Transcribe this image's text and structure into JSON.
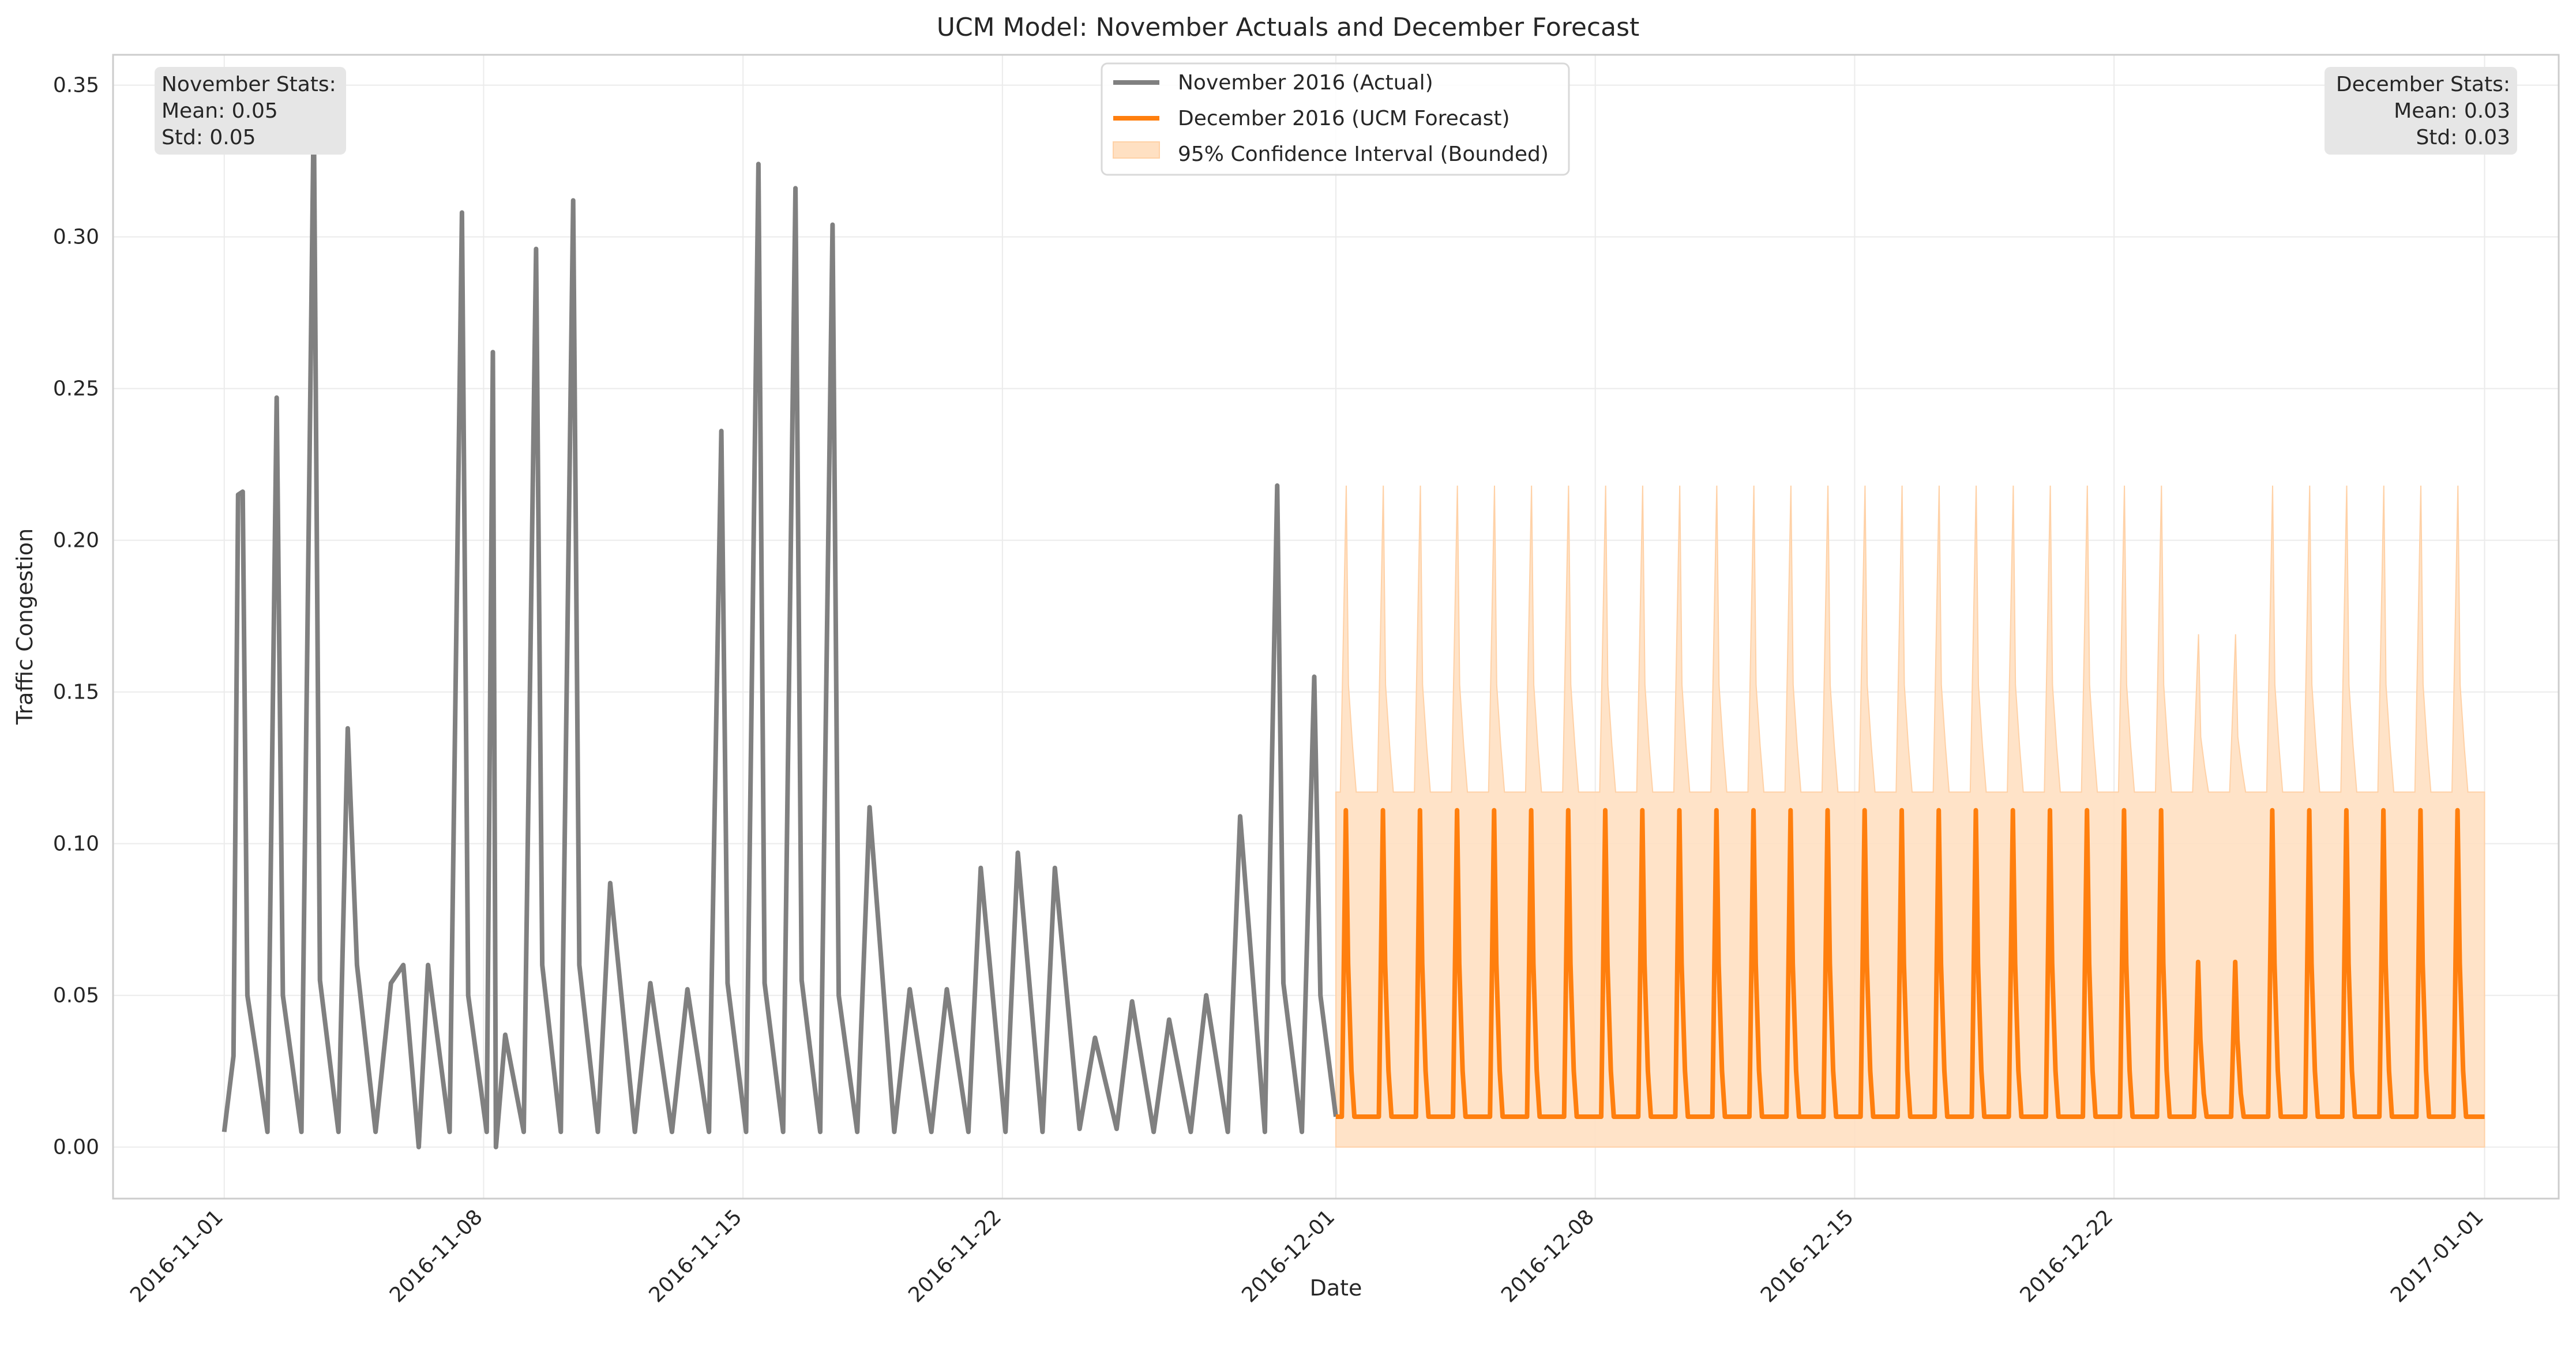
{
  "chart_data": {
    "type": "line",
    "title": "UCM Model: November Actuals and December Forecast",
    "xlabel": "Date",
    "ylabel": "Traffic Congestion",
    "xlim": [
      "2016-10-29",
      "2017-01-03"
    ],
    "ylim": [
      -0.017,
      0.36
    ],
    "x_ticks": [
      "2016-11-01",
      "2016-11-08",
      "2016-11-15",
      "2016-11-22",
      "2016-12-01",
      "2016-12-08",
      "2016-12-15",
      "2016-12-22",
      "2017-01-01"
    ],
    "y_ticks": [
      "0.00",
      "0.05",
      "0.10",
      "0.15",
      "0.20",
      "0.25",
      "0.30",
      "0.35"
    ],
    "grid": true,
    "legend_position": "top-center",
    "series": [
      {
        "name": "November 2016 (Actual)",
        "color": "#808080",
        "description": "hourly actual values, key points (date, value)",
        "points": [
          [
            "2016-11-01",
            0.005
          ],
          [
            "2016-11-01T06",
            0.03
          ],
          [
            "2016-11-01T09",
            0.215
          ],
          [
            "2016-11-01T12",
            0.216
          ],
          [
            "2016-11-01T15",
            0.05
          ],
          [
            "2016-11-01T21",
            0.03
          ],
          [
            "2016-11-02T04",
            0.005
          ],
          [
            "2016-11-02T10",
            0.247
          ],
          [
            "2016-11-02T14",
            0.05
          ],
          [
            "2016-11-03T02",
            0.005
          ],
          [
            "2016-11-03T10",
            0.343
          ],
          [
            "2016-11-03T14",
            0.055
          ],
          [
            "2016-11-04T02",
            0.005
          ],
          [
            "2016-11-04T08",
            0.138
          ],
          [
            "2016-11-04T14",
            0.06
          ],
          [
            "2016-11-05T02",
            0.005
          ],
          [
            "2016-11-05T12",
            0.054
          ],
          [
            "2016-11-05T20",
            0.06
          ],
          [
            "2016-11-06T06",
            0.0
          ],
          [
            "2016-11-06T12",
            0.06
          ],
          [
            "2016-11-07T02",
            0.005
          ],
          [
            "2016-11-07T10",
            0.308
          ],
          [
            "2016-11-07T14",
            0.05
          ],
          [
            "2016-11-08T02",
            0.005
          ],
          [
            "2016-11-08T06",
            0.262
          ],
          [
            "2016-11-08T08",
            0.0
          ],
          [
            "2016-11-08T14",
            0.037
          ],
          [
            "2016-11-09T02",
            0.005
          ],
          [
            "2016-11-09T10",
            0.296
          ],
          [
            "2016-11-09T14",
            0.06
          ],
          [
            "2016-11-10T02",
            0.005
          ],
          [
            "2016-11-10T10",
            0.312
          ],
          [
            "2016-11-10T14",
            0.06
          ],
          [
            "2016-11-11T02",
            0.005
          ],
          [
            "2016-11-11T10",
            0.087
          ],
          [
            "2016-11-12T02",
            0.005
          ],
          [
            "2016-11-12T12",
            0.054
          ],
          [
            "2016-11-13T02",
            0.005
          ],
          [
            "2016-11-13T12",
            0.052
          ],
          [
            "2016-11-14T02",
            0.005
          ],
          [
            "2016-11-14T10",
            0.236
          ],
          [
            "2016-11-14T14",
            0.054
          ],
          [
            "2016-11-15T02",
            0.005
          ],
          [
            "2016-11-15T10",
            0.324
          ],
          [
            "2016-11-15T14",
            0.054
          ],
          [
            "2016-11-16T02",
            0.005
          ],
          [
            "2016-11-16T10",
            0.316
          ],
          [
            "2016-11-16T14",
            0.055
          ],
          [
            "2016-11-17T02",
            0.005
          ],
          [
            "2016-11-17T10",
            0.304
          ],
          [
            "2016-11-17T14",
            0.05
          ],
          [
            "2016-11-18T02",
            0.005
          ],
          [
            "2016-11-18T10",
            0.112
          ],
          [
            "2016-11-19T02",
            0.005
          ],
          [
            "2016-11-19T12",
            0.052
          ],
          [
            "2016-11-20T02",
            0.005
          ],
          [
            "2016-11-20T12",
            0.052
          ],
          [
            "2016-11-21T02",
            0.005
          ],
          [
            "2016-11-21T10",
            0.092
          ],
          [
            "2016-11-22T02",
            0.005
          ],
          [
            "2016-11-22T10",
            0.097
          ],
          [
            "2016-11-23T02",
            0.005
          ],
          [
            "2016-11-23T10",
            0.092
          ],
          [
            "2016-11-24T02",
            0.006
          ],
          [
            "2016-11-24T12",
            0.036
          ],
          [
            "2016-11-25T02",
            0.006
          ],
          [
            "2016-11-25T12",
            0.048
          ],
          [
            "2016-11-26T02",
            0.005
          ],
          [
            "2016-11-26T12",
            0.042
          ],
          [
            "2016-11-27T02",
            0.005
          ],
          [
            "2016-11-27T12",
            0.05
          ],
          [
            "2016-11-28T02",
            0.005
          ],
          [
            "2016-11-28T10",
            0.109
          ],
          [
            "2016-11-29T02",
            0.005
          ],
          [
            "2016-11-29T10",
            0.218
          ],
          [
            "2016-11-29T14",
            0.054
          ],
          [
            "2016-11-30T02",
            0.005
          ],
          [
            "2016-11-30T10",
            0.155
          ],
          [
            "2016-11-30T14",
            0.05
          ],
          [
            "2016-12-01T00",
            0.01
          ]
        ]
      },
      {
        "name": "December 2016 (UCM Forecast)",
        "color": "#ff7f0e",
        "description": "daily cycle from 2016-12-01 to 2017-01-01; weekday peak 0.111, baseline 0.01; lower peaks on 2016-12-24 and 2016-12-25",
        "x_start": "2016-12-01",
        "x_end": "2017-01-01",
        "baseline": 0.01,
        "daily_peak": [
          0.111,
          0.111,
          0.111,
          0.111,
          0.111,
          0.111,
          0.111,
          0.111,
          0.111,
          0.111,
          0.111,
          0.111,
          0.111,
          0.111,
          0.111,
          0.111,
          0.111,
          0.111,
          0.111,
          0.111,
          0.111,
          0.111,
          0.111,
          0.061,
          0.061,
          0.111,
          0.111,
          0.111,
          0.111,
          0.111,
          0.111
        ]
      },
      {
        "name": "95% Confidence Interval (Bounded)",
        "color": "#ffe0c2",
        "lower": 0.0,
        "upper_baseline": 0.117,
        "upper_daily_peak": [
          0.218,
          0.218,
          0.218,
          0.218,
          0.218,
          0.218,
          0.218,
          0.218,
          0.218,
          0.218,
          0.218,
          0.218,
          0.218,
          0.218,
          0.218,
          0.218,
          0.218,
          0.218,
          0.218,
          0.218,
          0.218,
          0.218,
          0.218,
          0.169,
          0.169,
          0.218,
          0.218,
          0.218,
          0.218,
          0.218,
          0.218
        ]
      }
    ],
    "annotations": {
      "november_stats": [
        "November Stats:",
        "Mean: 0.05",
        "Std: 0.05"
      ],
      "december_stats": [
        "December Stats:",
        "Mean: 0.03",
        "Std: 0.03"
      ]
    }
  }
}
